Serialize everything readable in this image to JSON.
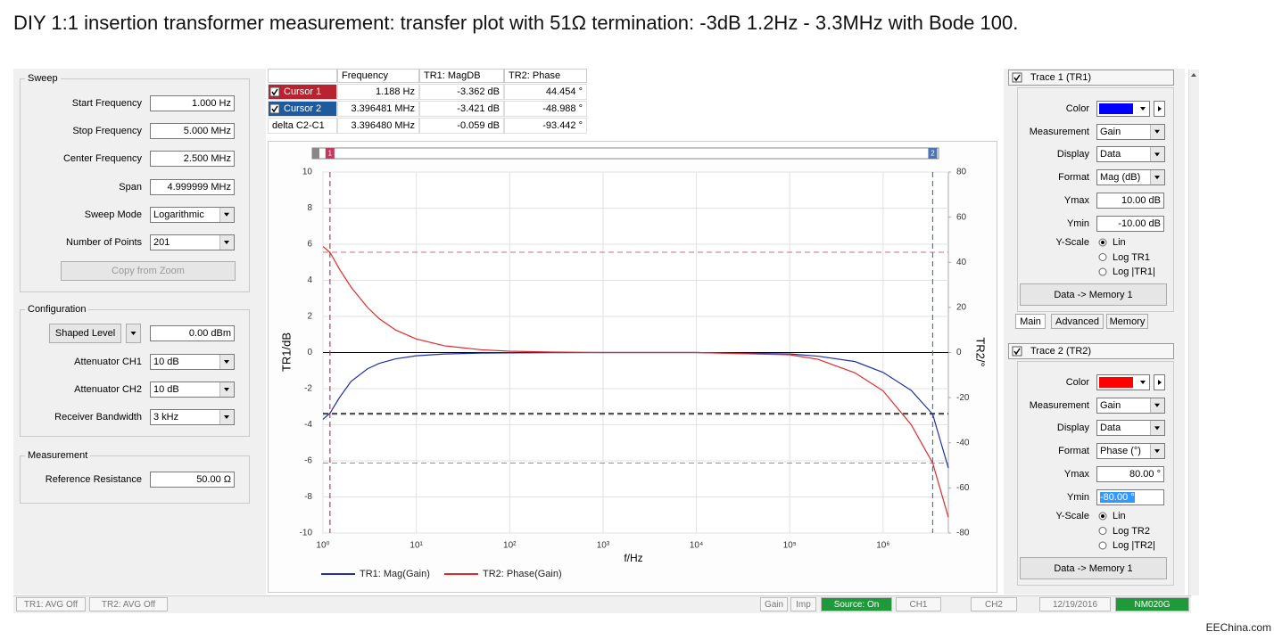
{
  "title": "DIY 1:1 insertion transformer measurement: transfer plot with 51Ω termination: -3dB 1.2Hz  - 3.3MHz  with Bode 100.",
  "sweep": {
    "label": "Sweep",
    "fields": [
      {
        "label": "Start Frequency",
        "value": "1.000 Hz"
      },
      {
        "label": "Stop Frequency",
        "value": "5.000 MHz"
      },
      {
        "label": "Center Frequency",
        "value": "2.500 MHz"
      },
      {
        "label": "Span",
        "value": "4.999999 MHz"
      },
      {
        "label": "Sweep Mode",
        "value": "Logarithmic",
        "dropdown": true
      },
      {
        "label": "Number of Points",
        "value": "201",
        "dropdown": true
      }
    ],
    "button": "Copy from Zoom"
  },
  "configuration": {
    "label": "Configuration",
    "shaped_level": {
      "button": "Shaped Level",
      "value": "0.00 dBm"
    },
    "fields": [
      {
        "label": "Attenuator CH1",
        "value": "10 dB",
        "dropdown": true
      },
      {
        "label": "Attenuator CH2",
        "value": "10 dB",
        "dropdown": true
      },
      {
        "label": "Receiver Bandwidth",
        "value": "3 kHz",
        "dropdown": true
      }
    ]
  },
  "measurement": {
    "label": "Measurement",
    "fields": [
      {
        "label": "Reference Resistance",
        "value": "50.00 Ω"
      }
    ]
  },
  "cursor_table": {
    "headers": [
      "Frequency",
      "TR1: MagDB",
      "TR2: Phase"
    ],
    "rows": [
      [
        "Cursor 1",
        "1.188 Hz",
        "-3.362 dB",
        "44.454 °"
      ],
      [
        "Cursor 2",
        "3.396481 MHz",
        "-3.421 dB",
        "-48.988 °"
      ],
      [
        "delta C2-C1",
        "3.396480 MHz",
        "-0.059 dB",
        "-93.442 °"
      ]
    ],
    "row_colors": [
      "#b8232f",
      "#1d5b9e",
      "#ffffff"
    ],
    "checked": [
      true,
      true,
      false
    ]
  },
  "chart_data": {
    "type": "line",
    "x_label": "f/Hz",
    "y_label": "TR1/dB",
    "y2_label": "TR2/°",
    "log_x": true,
    "grid": true,
    "xlim": [
      1,
      5000000
    ],
    "xticks": [
      {
        "value": 1,
        "label": "10⁰"
      },
      {
        "value": 10,
        "label": "10¹"
      },
      {
        "value": 100,
        "label": "10²"
      },
      {
        "value": 1000,
        "label": "10³"
      },
      {
        "value": 10000,
        "label": "10⁴"
      },
      {
        "value": 100000,
        "label": "10⁵"
      },
      {
        "value": 1000000,
        "label": "10⁶"
      }
    ],
    "ylim": [
      -10,
      10
    ],
    "yticks": [
      -10,
      -8,
      -6,
      -4,
      -2,
      0,
      2,
      4,
      6,
      8,
      10
    ],
    "y2lim": [
      -80,
      80
    ],
    "y2ticks": [
      -80,
      -60,
      -40,
      -20,
      0,
      20,
      40,
      60,
      80
    ],
    "x": [
      1,
      1.188,
      1.5,
      2,
      3,
      4,
      6,
      10,
      20,
      50,
      100,
      300,
      1000,
      10000,
      100000,
      200000,
      500000,
      1000000,
      2000000,
      3396481,
      5000000
    ],
    "series": [
      {
        "name": "TR1: Mag(Gain)",
        "color": "#1f2fa8",
        "values": [
          -3.7,
          -3.362,
          -2.5,
          -1.6,
          -0.9,
          -0.6,
          -0.35,
          -0.18,
          -0.08,
          -0.03,
          -0.02,
          -0.01,
          0,
          0,
          -0.08,
          -0.2,
          -0.5,
          -1.1,
          -2.1,
          -3.421,
          -6.4
        ]
      },
      {
        "name": "TR2: Phase(Gain)",
        "color": "#e02a2a",
        "axis": "y2",
        "values": [
          47,
          44.454,
          37,
          29,
          20,
          15,
          10,
          6,
          3,
          1.2,
          0.6,
          0.2,
          0,
          0,
          -1,
          -3,
          -9,
          -17,
          -32,
          -48.988,
          -73
        ]
      }
    ],
    "cursor_labels": [
      "1",
      "2"
    ],
    "cursor_x": [
      1.188,
      3396481
    ],
    "cursor_tr1": [
      -3.362,
      -3.421
    ],
    "cursor_tr2": [
      44.454,
      -48.988
    ],
    "cursor_colors": [
      "#c2395e",
      "#4a74b4"
    ]
  },
  "traces": [
    {
      "header": "Trace 1 (TR1)",
      "color": "#0000ff",
      "rows": [
        {
          "label": "Color",
          "swatch": true
        },
        {
          "label": "Measurement",
          "value": "Gain",
          "dropdown": true
        },
        {
          "label": "Display",
          "value": "Data",
          "dropdown": true
        },
        {
          "label": "Format",
          "value": "Mag (dB)",
          "dropdown": true
        },
        {
          "label": "Ymax",
          "value": "10.00 dB"
        },
        {
          "label": "Ymin",
          "value": "-10.00 dB"
        }
      ],
      "yscale": {
        "label": "Y-Scale",
        "options": [
          "Lin",
          "Log TR1",
          "Log |TR1|"
        ]
      },
      "button": "Data -> Memory 1"
    },
    {
      "header": "Trace 2 (TR2)",
      "color": "#ff0000",
      "rows": [
        {
          "label": "Color",
          "swatch": true
        },
        {
          "label": "Measurement",
          "value": "Gain",
          "dropdown": true
        },
        {
          "label": "Display",
          "value": "Data",
          "dropdown": true
        },
        {
          "label": "Format",
          "value": "Phase (°)",
          "dropdown": true
        },
        {
          "label": "Ymax",
          "value": "80.00 °"
        },
        {
          "label": "Ymin",
          "value": "-80.00 °",
          "selected": true
        }
      ],
      "yscale": {
        "label": "Y-Scale",
        "options": [
          "Lin",
          "Log TR2",
          "Log |TR2|"
        ]
      },
      "button": "Data -> Memory 1"
    }
  ],
  "tabs": [
    "Main",
    "Advanced",
    "Memory"
  ],
  "status": [
    {
      "text": "TR1:  AVG Off"
    },
    {
      "text": "TR2:  AVG Off"
    },
    {
      "text": "Gain"
    },
    {
      "text": "Imp"
    },
    {
      "text": "Source: On",
      "highlight": true
    },
    {
      "text": "CH1"
    },
    {
      "text": "CH2"
    },
    {
      "text": "12/19/2016"
    },
    {
      "text": "NM020G",
      "highlight": true
    }
  ],
  "watermark": "EEChina.com"
}
